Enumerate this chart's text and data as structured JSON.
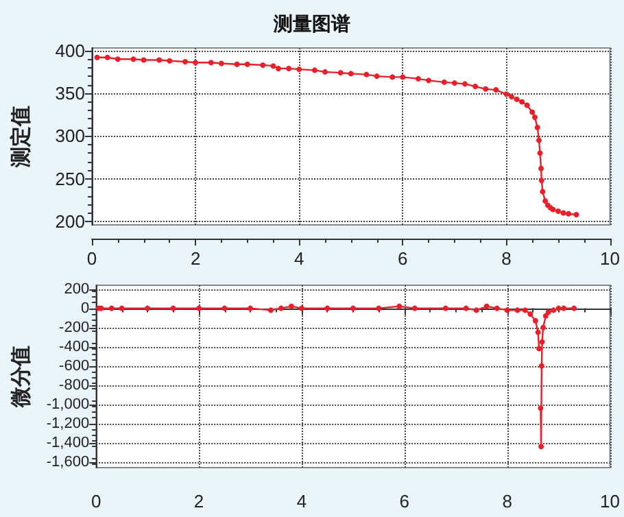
{
  "chart_data": [
    {
      "type": "line",
      "title": "测量图谱",
      "ylabel": "测定值",
      "xlim": [
        0,
        10
      ],
      "xticks": [
        0,
        2,
        4,
        6,
        8,
        10
      ],
      "ylim": [
        196,
        403
      ],
      "yticks": [
        200,
        250,
        300,
        350,
        400
      ],
      "grid": true,
      "marker": "circle",
      "line_style": "solid",
      "series": [
        {
          "color": "#e8202a",
          "x": [
            0.1,
            0.3,
            0.5,
            0.8,
            1,
            1.3,
            1.5,
            1.8,
            2,
            2.3,
            2.5,
            2.8,
            3,
            3.3,
            3.5,
            3.6,
            3.8,
            4,
            4.3,
            4.5,
            4.8,
            5,
            5.3,
            5.5,
            5.8,
            6,
            6.3,
            6.5,
            6.8,
            7,
            7.2,
            7.4,
            7.6,
            7.8,
            8,
            8.1,
            8.2,
            8.3,
            8.4,
            8.5,
            8.55,
            8.6,
            8.63,
            8.65,
            8.67,
            8.68,
            8.7,
            8.75,
            8.8,
            8.85,
            8.9,
            9,
            9.1,
            9.2,
            9.35
          ],
          "values": [
            392,
            392,
            390,
            390,
            389,
            389,
            388,
            387,
            386,
            386,
            385,
            384,
            384,
            383,
            382,
            379,
            379,
            378,
            377,
            375,
            374,
            373,
            372,
            370,
            369,
            369,
            367,
            365,
            363,
            362,
            361,
            358,
            355,
            354,
            349,
            346,
            343,
            340,
            336,
            328,
            322,
            310,
            295,
            280,
            262,
            248,
            235,
            224,
            219,
            216,
            214,
            212,
            210,
            209,
            208
          ]
        }
      ]
    },
    {
      "type": "line",
      "ylabel": "微分值",
      "xlim": [
        0,
        10
      ],
      "xticks": [
        0,
        2,
        4,
        6,
        8,
        10
      ],
      "ylim": [
        -1660,
        240
      ],
      "yticks": [
        200,
        0,
        -200,
        -400,
        -600,
        -800,
        {
          "value": -1000,
          "label": "-1,000"
        },
        {
          "value": -1200,
          "label": "-1,200"
        },
        {
          "value": -1400,
          "label": "-1,400"
        },
        {
          "value": -1600,
          "label": "-1,600"
        }
      ],
      "grid": true,
      "marker": "circle",
      "line_style": "solid",
      "series": [
        {
          "color": "#e8202a",
          "x": [
            0.05,
            0.1,
            0.3,
            0.5,
            1,
            1.5,
            2,
            2.5,
            3,
            3.4,
            3.6,
            3.8,
            4,
            4.5,
            5,
            5.5,
            5.9,
            6.2,
            6.8,
            7.2,
            7.4,
            7.6,
            7.8,
            8,
            8.2,
            8.35,
            8.45,
            8.55,
            8.6,
            8.62,
            8.64,
            8.65,
            8.66,
            8.67,
            8.68,
            8.7,
            8.75,
            8.8,
            8.9,
            9,
            9.1,
            9.3
          ],
          "values": [
            0,
            0,
            0,
            0,
            0,
            0,
            0,
            0,
            0,
            -20,
            0,
            20,
            0,
            0,
            0,
            0,
            20,
            0,
            0,
            0,
            -20,
            20,
            0,
            -20,
            -20,
            -20,
            -60,
            -130,
            -250,
            -420,
            null,
            -1040,
            -1440,
            -600,
            -350,
            -200,
            -80,
            -40,
            -20,
            0,
            0,
            0
          ]
        }
      ]
    }
  ]
}
